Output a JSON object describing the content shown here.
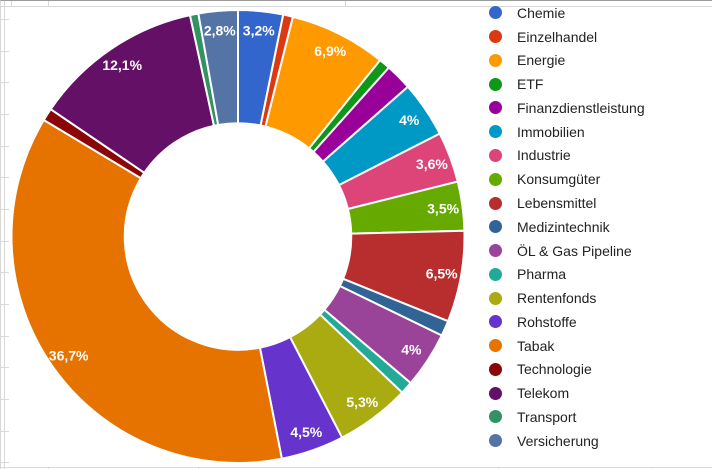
{
  "chart_data": {
    "type": "pie",
    "subtype": "donut",
    "donut_hole_ratio": 0.5,
    "legend_position": "right",
    "grid": "spreadsheet-background",
    "title": "",
    "slices": [
      {
        "name": "Chemie",
        "value": 3.2,
        "label": "3,2%",
        "color": "#3366CC"
      },
      {
        "name": "Einzelhandel",
        "value": 0.7,
        "label": "",
        "color": "#DC3912"
      },
      {
        "name": "Energie",
        "value": 6.9,
        "label": "6,9%",
        "color": "#FF9900"
      },
      {
        "name": "ETF",
        "value": 0.8,
        "label": "",
        "color": "#109618"
      },
      {
        "name": "Finanzdienstleistung",
        "value": 1.9,
        "label": "",
        "color": "#990099"
      },
      {
        "name": "Immobilien",
        "value": 4.0,
        "label": "4%",
        "color": "#0099C6"
      },
      {
        "name": "Industrie",
        "value": 3.6,
        "label": "3,6%",
        "color": "#DD4477"
      },
      {
        "name": "Konsumgüter",
        "value": 3.5,
        "label": "3,5%",
        "color": "#66AA00"
      },
      {
        "name": "Lebensmittel",
        "value": 6.5,
        "label": "6,5%",
        "color": "#B82E2E"
      },
      {
        "name": "Medizintechnik",
        "value": 1.1,
        "label": "",
        "color": "#316395"
      },
      {
        "name": "ÖL & Gas Pipeline",
        "value": 4.0,
        "label": "4%",
        "color": "#994499"
      },
      {
        "name": "Pharma",
        "value": 0.9,
        "label": "",
        "color": "#22AA99"
      },
      {
        "name": "Rentenfonds",
        "value": 5.3,
        "label": "5,3%",
        "color": "#AAAA11"
      },
      {
        "name": "Rohstoffe",
        "value": 4.5,
        "label": "4,5%",
        "color": "#6633CC"
      },
      {
        "name": "Tabak",
        "value": 36.7,
        "label": "36,7%",
        "color": "#E67300"
      },
      {
        "name": "Technologie",
        "value": 0.9,
        "label": "",
        "color": "#8B0707"
      },
      {
        "name": "Telekom",
        "value": 12.1,
        "label": "12,1%",
        "color": "#651067"
      },
      {
        "name": "Transport",
        "value": 0.6,
        "label": "",
        "color": "#329262"
      },
      {
        "name": "Versicherung",
        "value": 2.8,
        "label": "2,8%",
        "color": "#5574A6"
      }
    ],
    "colors": {
      "background": "#ffffff",
      "slice_border": "#ffffff",
      "slice_label_text": "#ffffff",
      "legend_text": "#222222",
      "gridline": "#d9d9d9"
    }
  }
}
